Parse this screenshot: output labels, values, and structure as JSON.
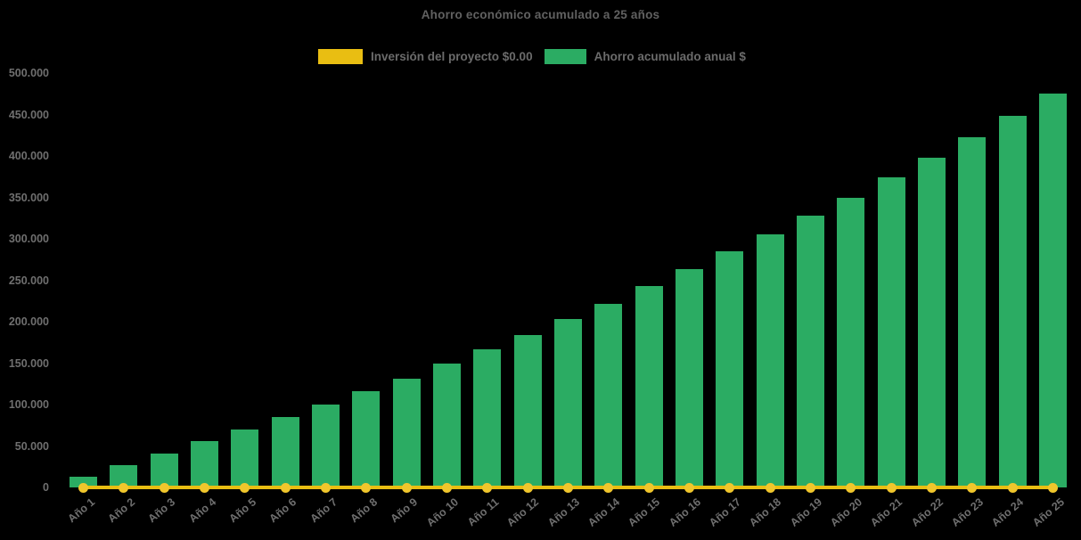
{
  "title": "Ahorro económico acumulado a 25 años",
  "legend": {
    "items": [
      {
        "label": "Inversión del proyecto $0.00",
        "color": "#E9BE12"
      },
      {
        "label": "Ahorro acumulado anual $",
        "color": "#2BAC63"
      }
    ]
  },
  "y_axis": {
    "tick_labels": [
      "500.000",
      "450.000",
      "400.000",
      "350.000",
      "300.000",
      "250.000",
      "200.000",
      "150.000",
      "100.000",
      "50.000",
      "0"
    ]
  },
  "chart_data": {
    "type": "bar",
    "title": "Ahorro económico acumulado a 25 años",
    "background": "#000000",
    "grid": false,
    "legend_position": "top",
    "xlabel": "",
    "ylabel": "",
    "ylim": [
      0,
      500000
    ],
    "ytick_step": 50000,
    "categories": [
      "Año 1",
      "Año 2",
      "Año 3",
      "Año 4",
      "Año 5",
      "Año 6",
      "Año 7",
      "Año 8",
      "Año 9",
      "Año 10",
      "Año 11",
      "Año 12",
      "Año 13",
      "Año 14",
      "Año 15",
      "Año 16",
      "Año 17",
      "Año 18",
      "Año 19",
      "Año 20",
      "Año 21",
      "Año 22",
      "Año 23",
      "Año 24",
      "Año 25"
    ],
    "series": [
      {
        "name": "Inversión del proyecto $0.00",
        "type": "line",
        "color": "#E9BE12",
        "marker_color": "#F0C62C",
        "values": [
          0,
          0,
          0,
          0,
          0,
          0,
          0,
          0,
          0,
          0,
          0,
          0,
          0,
          0,
          0,
          0,
          0,
          0,
          0,
          0,
          0,
          0,
          0,
          0,
          0
        ]
      },
      {
        "name": "Ahorro acumulado anual $",
        "type": "bar",
        "color": "#2BAC63",
        "values": [
          13000,
          26500,
          40500,
          55500,
          70000,
          84500,
          100500,
          116000,
          131500,
          149500,
          166500,
          184000,
          203000,
          222000,
          242500,
          263000,
          284500,
          305500,
          327500,
          350000,
          374000,
          398000,
          423000,
          448500,
          475000
        ]
      }
    ]
  }
}
